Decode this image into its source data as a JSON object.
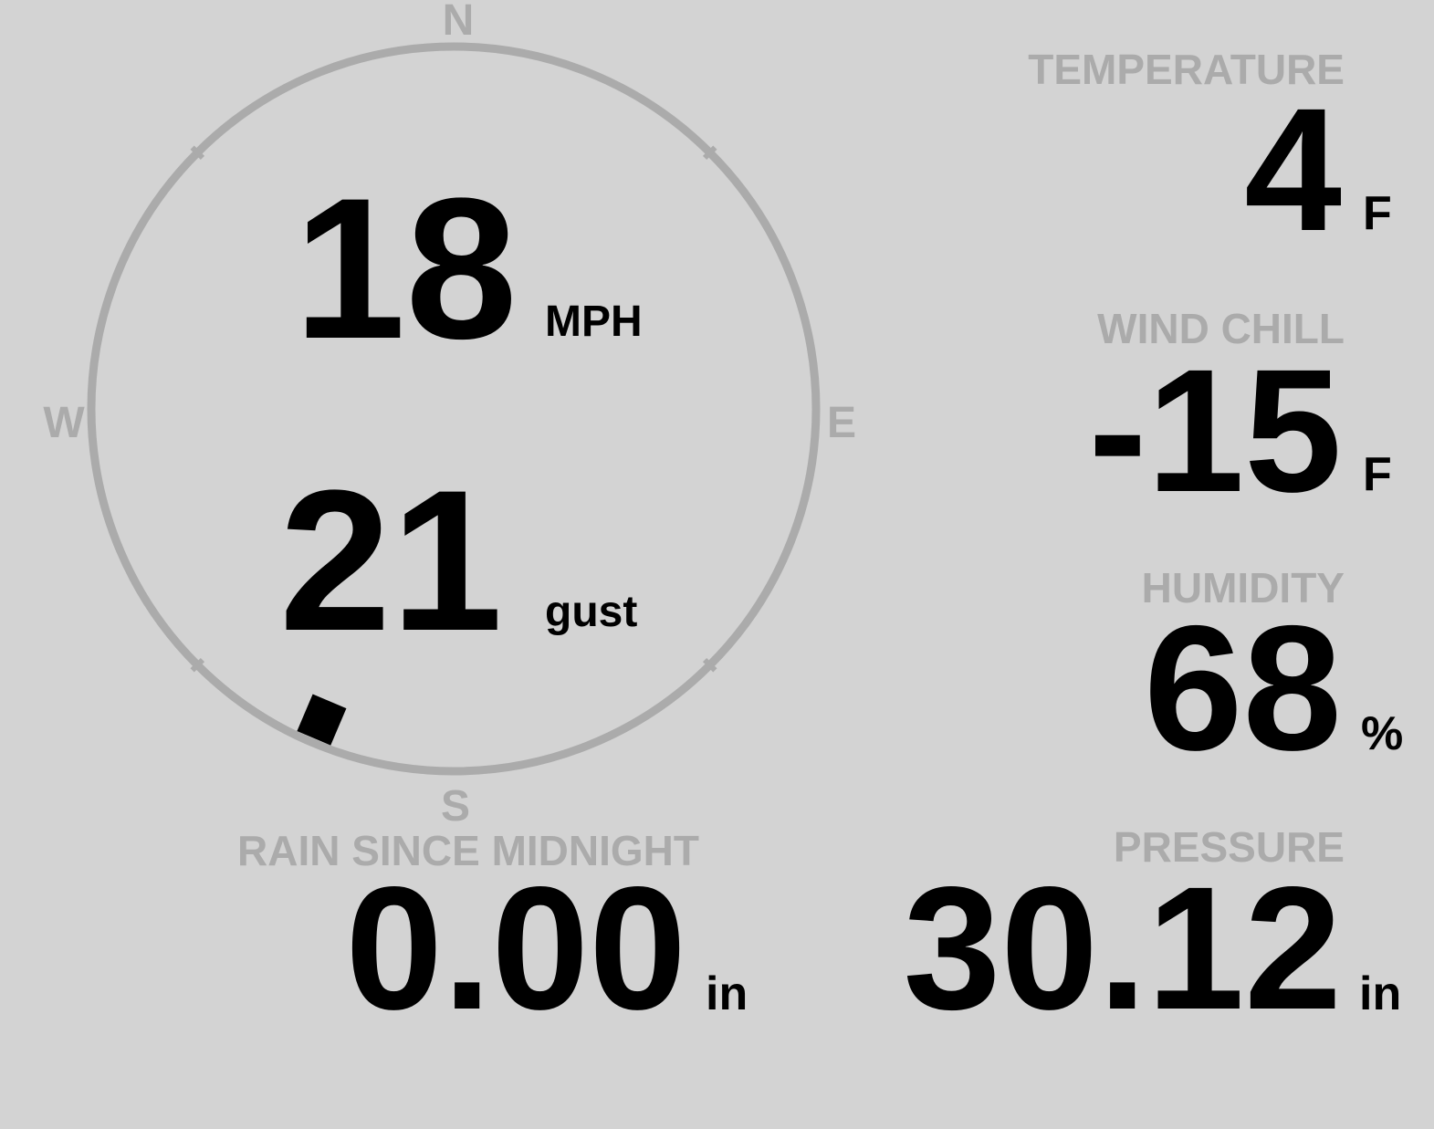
{
  "colors": {
    "background": "#d3d3d3",
    "label": "#ababab",
    "value": "#000000",
    "ring": "#ababab"
  },
  "compass": {
    "north": "N",
    "east": "E",
    "south": "S",
    "west": "W",
    "wind_direction_deg": 203
  },
  "wind": {
    "speed": "18",
    "speed_unit": "MPH",
    "gust": "21",
    "gust_unit": "gust"
  },
  "temperature": {
    "label": "TEMPERATURE",
    "value": "4",
    "unit": "F"
  },
  "wind_chill": {
    "label": "WIND CHILL",
    "value": "-15",
    "unit": "F"
  },
  "humidity": {
    "label": "HUMIDITY",
    "value": "68",
    "unit": "%"
  },
  "rain": {
    "label": "RAIN SINCE MIDNIGHT",
    "value": "0.00",
    "unit": "in"
  },
  "pressure": {
    "label": "PRESSURE",
    "value": "30.12",
    "unit": "in"
  }
}
